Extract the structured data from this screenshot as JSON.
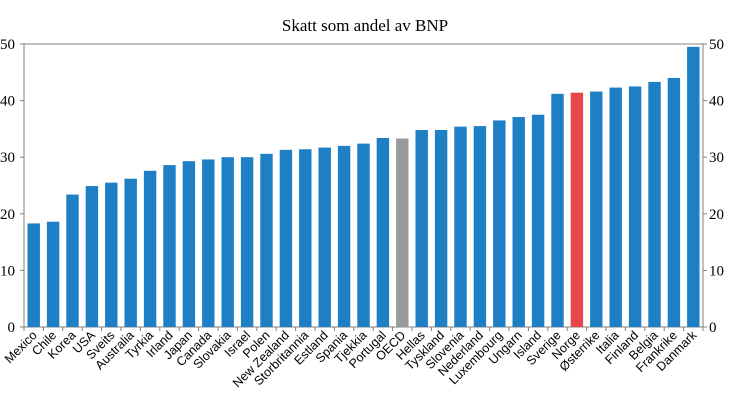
{
  "chart_data": {
    "type": "bar",
    "title": "Skatt som andel av BNP",
    "xlabel": "",
    "ylabel": "",
    "ylim": [
      0,
      50
    ],
    "yticks": [
      0,
      10,
      20,
      30,
      40,
      50
    ],
    "grid": false,
    "categories": [
      "Mexico",
      "Chile",
      "Korea",
      "USA",
      "Sveits",
      "Australia",
      "Tyrkia",
      "Irland",
      "Japan",
      "Canada",
      "Slovakia",
      "Israel",
      "Polen",
      "New Zealand",
      "Storbritannia",
      "Estland",
      "Spania",
      "Tjekkia",
      "Portugal",
      "OECD",
      "Hellas",
      "Tyskland",
      "Slovenia",
      "Nederland",
      "Luxembourg",
      "Ungarn",
      "Island",
      "Sverige",
      "Norge",
      "Østerrike",
      "Italia",
      "Finland",
      "Belgia",
      "Frankrike",
      "Danmark"
    ],
    "values": [
      18.3,
      18.6,
      23.4,
      24.9,
      25.5,
      26.2,
      27.6,
      28.6,
      29.3,
      29.6,
      30.0,
      30.0,
      30.6,
      31.3,
      31.4,
      31.7,
      32.0,
      32.4,
      33.4,
      33.3,
      34.8,
      34.8,
      35.4,
      35.5,
      36.5,
      37.1,
      37.5,
      41.2,
      41.4,
      41.6,
      42.3,
      42.5,
      43.3,
      44.0,
      49.5
    ],
    "colors": {
      "default": "#1f7fc5",
      "OECD": "#9a9a9a",
      "Norge": "#e8474a"
    }
  }
}
